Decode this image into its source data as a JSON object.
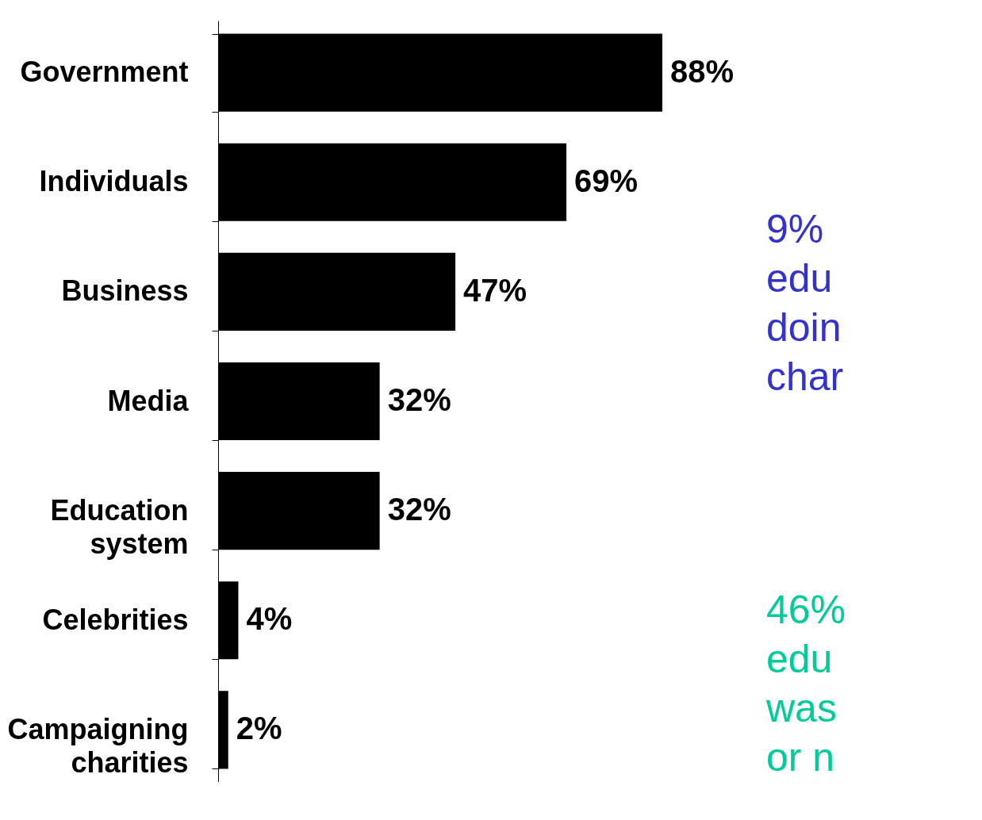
{
  "chart_data": {
    "type": "bar",
    "orientation": "horizontal",
    "color": "#000000",
    "tick_labels": "y",
    "categories": [
      "Government",
      "Individuals",
      "Business",
      "Media",
      "Education system",
      "Celebrities",
      "Campaigning charities"
    ],
    "values": [
      88,
      69,
      47,
      32,
      32,
      4,
      2
    ],
    "value_labels": [
      "88%",
      "69%",
      "47%",
      "32%",
      "32%",
      "4%",
      "2%"
    ],
    "annotations": [
      "9%\nedu\ndoin\nchar",
      "46%\nedu\nwas\nor n"
    ]
  }
}
